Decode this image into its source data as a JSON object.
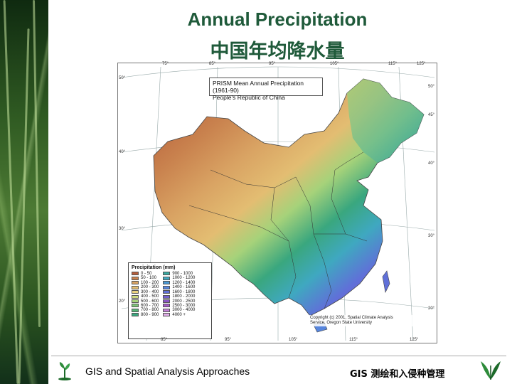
{
  "slide": {
    "title_en": "Annual Precipitation",
    "title_cn": "中国年均降水量"
  },
  "map": {
    "title_line1": "PRISM Mean Annual Precipitation (1961-90)",
    "title_line2": "People's Republic of China",
    "legend_title": "Precipitation (mm)",
    "legend_items": [
      {
        "label": "0 - 50",
        "color": "#b65d3a"
      },
      {
        "label": "50 - 100",
        "color": "#c9824e"
      },
      {
        "label": "100 - 200",
        "color": "#d9a363"
      },
      {
        "label": "200 - 300",
        "color": "#e3bd72"
      },
      {
        "label": "300 - 400",
        "color": "#e9d27f"
      },
      {
        "label": "400 - 500",
        "color": "#cddb7e"
      },
      {
        "label": "500 - 600",
        "color": "#a6d27a"
      },
      {
        "label": "600 - 700",
        "color": "#7dc477"
      },
      {
        "label": "700 - 800",
        "color": "#56b577"
      },
      {
        "label": "800 - 900",
        "color": "#3aa77e"
      },
      {
        "label": "900 - 1000",
        "color": "#38a8a0"
      },
      {
        "label": "1000 - 1200",
        "color": "#3fa8c0"
      },
      {
        "label": "1200 - 1400",
        "color": "#4a9ad6"
      },
      {
        "label": "1400 - 1600",
        "color": "#5685dd"
      },
      {
        "label": "1600 - 1800",
        "color": "#6070d8"
      },
      {
        "label": "1800 - 2000",
        "color": "#735fcd"
      },
      {
        "label": "2000 - 2500",
        "color": "#8a55c4"
      },
      {
        "label": "2500 - 3000",
        "color": "#a35ac6"
      },
      {
        "label": "3000 - 4000",
        "color": "#c27fd6"
      },
      {
        "label": "4000 +",
        "color": "#e0aee8"
      }
    ],
    "copyright_line1": "Copyright (c) 2001, Spatial Climate Analysis",
    "copyright_line2": "Service, Oregon State University",
    "lon_top": [
      "75°",
      "85°",
      "95°",
      "105°",
      "115°",
      "125°"
    ],
    "lon_bottom": [
      "85°",
      "95°",
      "105°",
      "115°",
      "125°"
    ],
    "lat_left": [
      "50°",
      "40°",
      "30°",
      "20°"
    ],
    "lat_right": [
      "50°",
      "45°",
      "40°",
      "30°",
      "20°"
    ]
  },
  "footer": {
    "left_text": "GIS and Spatial Analysis Approaches",
    "right_text": "GIS 测绘和入侵种管理"
  }
}
